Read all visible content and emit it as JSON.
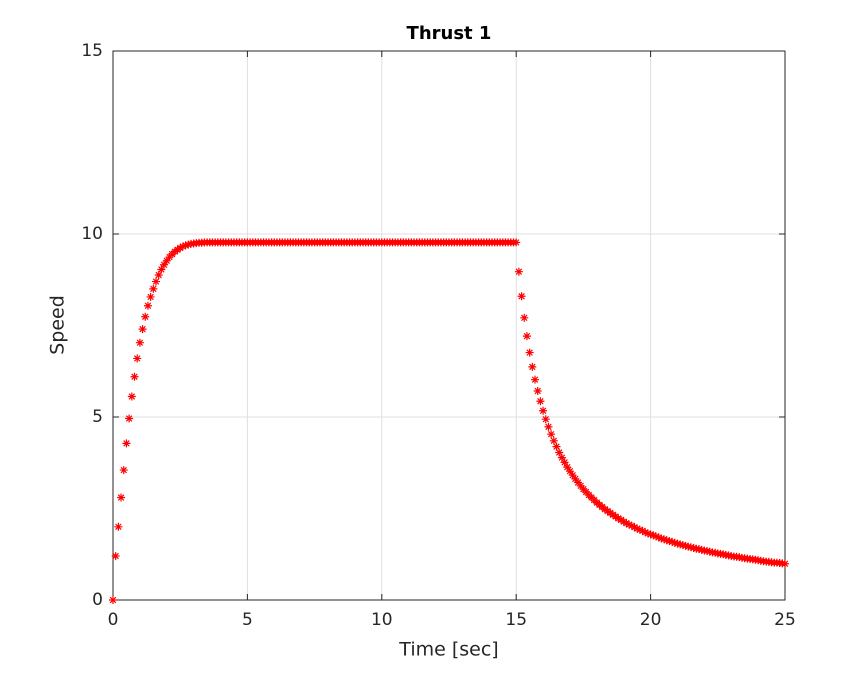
{
  "chart_data": {
    "type": "scatter",
    "title": "Thrust 1",
    "xlabel": "Time [sec]",
    "ylabel": "Speed",
    "color": "#ff0000",
    "marker": "asterisk",
    "grid": true,
    "xlim": [
      0,
      25
    ],
    "xticks": [
      0,
      5,
      10,
      15,
      20,
      25
    ],
    "ylim": [
      0,
      15
    ],
    "yticks": [
      0,
      5,
      10,
      15
    ],
    "x": [
      0,
      0.1,
      0.2,
      0.3,
      0.4,
      0.5,
      0.6,
      0.7,
      0.8,
      0.9,
      1,
      1.1,
      1.2,
      1.3,
      1.4,
      1.5,
      1.6,
      1.7,
      1.8,
      1.9,
      2,
      2.1,
      2.2,
      2.3,
      2.4,
      2.5,
      2.6,
      2.7,
      2.8,
      2.9,
      3,
      3.1,
      3.2,
      3.3,
      3.4,
      3.5,
      3.6,
      3.7,
      3.8,
      3.9,
      4,
      4.1,
      4.2,
      4.3,
      4.4,
      4.5,
      4.6,
      4.7,
      4.8,
      4.9,
      5,
      5.1,
      5.2,
      5.3,
      5.4,
      5.5,
      5.6,
      5.7,
      5.8,
      5.9,
      6,
      6.1,
      6.2,
      6.3,
      6.4,
      6.5,
      6.6,
      6.7,
      6.8,
      6.9,
      7,
      7.1,
      7.2,
      7.3,
      7.4,
      7.5,
      7.6,
      7.7,
      7.8,
      7.9,
      8,
      8.1,
      8.2,
      8.3,
      8.4,
      8.5,
      8.6,
      8.7,
      8.8,
      8.9,
      9,
      9.1,
      9.2,
      9.3,
      9.4,
      9.5,
      9.6,
      9.7,
      9.8,
      9.9,
      10,
      10.1,
      10.2,
      10.3,
      10.4,
      10.5,
      10.6,
      10.7,
      10.8,
      10.9,
      11,
      11.1,
      11.2,
      11.3,
      11.4,
      11.5,
      11.6,
      11.7,
      11.8,
      11.9,
      12,
      12.1,
      12.2,
      12.3,
      12.4,
      12.5,
      12.6,
      12.7,
      12.8,
      12.9,
      13,
      13.1,
      13.2,
      13.3,
      13.4,
      13.5,
      13.6,
      13.7,
      13.8,
      13.9,
      14,
      14.1,
      14.2,
      14.3,
      14.4,
      14.5,
      14.6,
      14.7,
      14.8,
      14.9,
      15,
      15.1,
      15.2,
      15.3,
      15.4,
      15.5,
      15.6,
      15.7,
      15.8,
      15.9,
      16,
      16.1,
      16.2,
      16.3,
      16.4,
      16.5,
      16.6,
      16.7,
      16.8,
      16.9,
      17,
      17.1,
      17.2,
      17.3,
      17.4,
      17.5,
      17.6,
      17.7,
      17.8,
      17.9,
      18,
      18.1,
      18.2,
      18.3,
      18.4,
      18.5,
      18.6,
      18.7,
      18.8,
      18.9,
      19,
      19.1,
      19.2,
      19.3,
      19.4,
      19.5,
      19.6,
      19.7,
      19.8,
      19.9,
      20,
      20.1,
      20.2,
      20.3,
      20.4,
      20.5,
      20.6,
      20.7,
      20.8,
      20.9,
      21,
      21.1,
      21.2,
      21.3,
      21.4,
      21.5,
      21.6,
      21.7,
      21.8,
      21.9,
      22,
      22.1,
      22.2,
      22.3,
      22.4,
      22.5,
      22.6,
      22.7,
      22.8,
      22.9,
      23,
      23.1,
      23.2,
      23.3,
      23.4,
      23.5,
      23.6,
      23.7,
      23.8,
      23.9,
      24,
      24.1,
      24.2,
      24.3,
      24.4,
      24.5,
      24.6,
      24.7,
      24.8,
      24.9,
      25
    ],
    "values": [
      0,
      1.2,
      2.0,
      2.8,
      3.55,
      4.28,
      4.96,
      5.56,
      6.1,
      6.6,
      7.03,
      7.4,
      7.74,
      8.04,
      8.28,
      8.5,
      8.7,
      8.88,
      9.03,
      9.16,
      9.27,
      9.37,
      9.45,
      9.52,
      9.57,
      9.62,
      9.66,
      9.69,
      9.71,
      9.73,
      9.74,
      9.75,
      9.76,
      9.76,
      9.77,
      9.77,
      9.77,
      9.77,
      9.77,
      9.77,
      9.77,
      9.77,
      9.77,
      9.77,
      9.77,
      9.77,
      9.77,
      9.77,
      9.77,
      9.77,
      9.77,
      9.77,
      9.77,
      9.77,
      9.77,
      9.77,
      9.77,
      9.77,
      9.77,
      9.77,
      9.77,
      9.77,
      9.77,
      9.77,
      9.77,
      9.77,
      9.77,
      9.77,
      9.77,
      9.77,
      9.77,
      9.77,
      9.77,
      9.77,
      9.77,
      9.77,
      9.77,
      9.77,
      9.77,
      9.77,
      9.77,
      9.77,
      9.77,
      9.77,
      9.77,
      9.77,
      9.77,
      9.77,
      9.77,
      9.77,
      9.77,
      9.77,
      9.77,
      9.77,
      9.77,
      9.77,
      9.77,
      9.77,
      9.77,
      9.77,
      9.77,
      9.77,
      9.77,
      9.77,
      9.77,
      9.77,
      9.77,
      9.77,
      9.77,
      9.77,
      9.77,
      9.77,
      9.77,
      9.77,
      9.77,
      9.77,
      9.77,
      9.77,
      9.77,
      9.77,
      9.77,
      9.77,
      9.77,
      9.77,
      9.77,
      9.77,
      9.77,
      9.77,
      9.77,
      9.77,
      9.77,
      9.77,
      9.77,
      9.77,
      9.77,
      9.77,
      9.77,
      9.77,
      9.77,
      9.77,
      9.77,
      9.77,
      9.77,
      9.77,
      9.77,
      9.77,
      9.77,
      9.77,
      9.77,
      9.77,
      9.77,
      8.97,
      8.3,
      7.71,
      7.21,
      6.76,
      6.37,
      6.02,
      5.71,
      5.43,
      5.17,
      4.94,
      4.73,
      4.53,
      4.35,
      4.19,
      4.03,
      3.89,
      3.76,
      3.63,
      3.52,
      3.41,
      3.31,
      3.21,
      3.12,
      3.03,
      2.95,
      2.87,
      2.8,
      2.73,
      2.66,
      2.6,
      2.54,
      2.48,
      2.43,
      2.38,
      2.33,
      2.28,
      2.23,
      2.19,
      2.14,
      2.1,
      2.06,
      2.03,
      1.99,
      1.95,
      1.92,
      1.89,
      1.85,
      1.82,
      1.79,
      1.77,
      1.74,
      1.71,
      1.68,
      1.66,
      1.63,
      1.61,
      1.59,
      1.56,
      1.54,
      1.52,
      1.5,
      1.48,
      1.46,
      1.44,
      1.42,
      1.4,
      1.39,
      1.37,
      1.35,
      1.34,
      1.32,
      1.3,
      1.29,
      1.27,
      1.26,
      1.25,
      1.23,
      1.22,
      1.2,
      1.19,
      1.18,
      1.17,
      1.15,
      1.14,
      1.13,
      1.12,
      1.11,
      1.1,
      1.09,
      1.07,
      1.06,
      1.05,
      1.04,
      1.03,
      1.02,
      1.02,
      1.01,
      1.0,
      0.99
    ]
  }
}
